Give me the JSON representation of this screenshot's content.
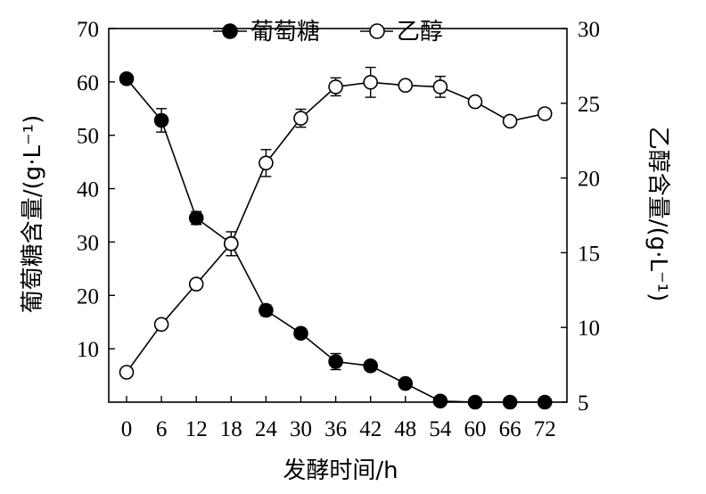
{
  "chart_data": {
    "type": "line",
    "x": [
      0,
      6,
      12,
      18,
      24,
      30,
      36,
      42,
      48,
      54,
      60,
      66,
      72
    ],
    "xlabel": "发酵时间/h",
    "ylabel_left": "葡萄糖含量/(g·L⁻¹)",
    "ylabel_right": "乙醇含量/(g·L⁻¹)",
    "ylim_left": [
      0,
      70
    ],
    "ylim_right": [
      5,
      30
    ],
    "yticks_left": [
      10,
      20,
      30,
      40,
      50,
      60,
      70
    ],
    "yticks_right": [
      5,
      10,
      15,
      20,
      25,
      30
    ],
    "xticks": [
      0,
      6,
      12,
      18,
      24,
      30,
      36,
      42,
      48,
      54,
      60,
      66,
      72
    ],
    "legend_position": "top-center",
    "grid": false,
    "series": [
      {
        "name": "葡萄糖",
        "axis": "left",
        "marker": "filled-circle",
        "values": [
          60.6,
          52.8,
          34.5,
          29.7,
          17.2,
          12.9,
          7.6,
          6.8,
          3.5,
          0.2,
          0.0,
          0.0,
          0.0
        ],
        "errors": [
          0.6,
          2.2,
          1.2,
          1.0,
          1.0,
          0.5,
          1.5,
          0.8,
          0.5,
          0.3,
          0.3,
          0.3,
          0.3
        ]
      },
      {
        "name": "乙醇",
        "axis": "right",
        "marker": "open-circle",
        "values": [
          7.0,
          10.2,
          12.9,
          15.6,
          21.0,
          24.0,
          26.1,
          26.4,
          26.2,
          26.1,
          25.1,
          23.8,
          24.3
        ],
        "errors": [
          0.2,
          0.2,
          0.2,
          0.8,
          0.9,
          0.6,
          0.6,
          1.0,
          0.2,
          0.7,
          0.2,
          0.2,
          0.2
        ]
      }
    ]
  }
}
